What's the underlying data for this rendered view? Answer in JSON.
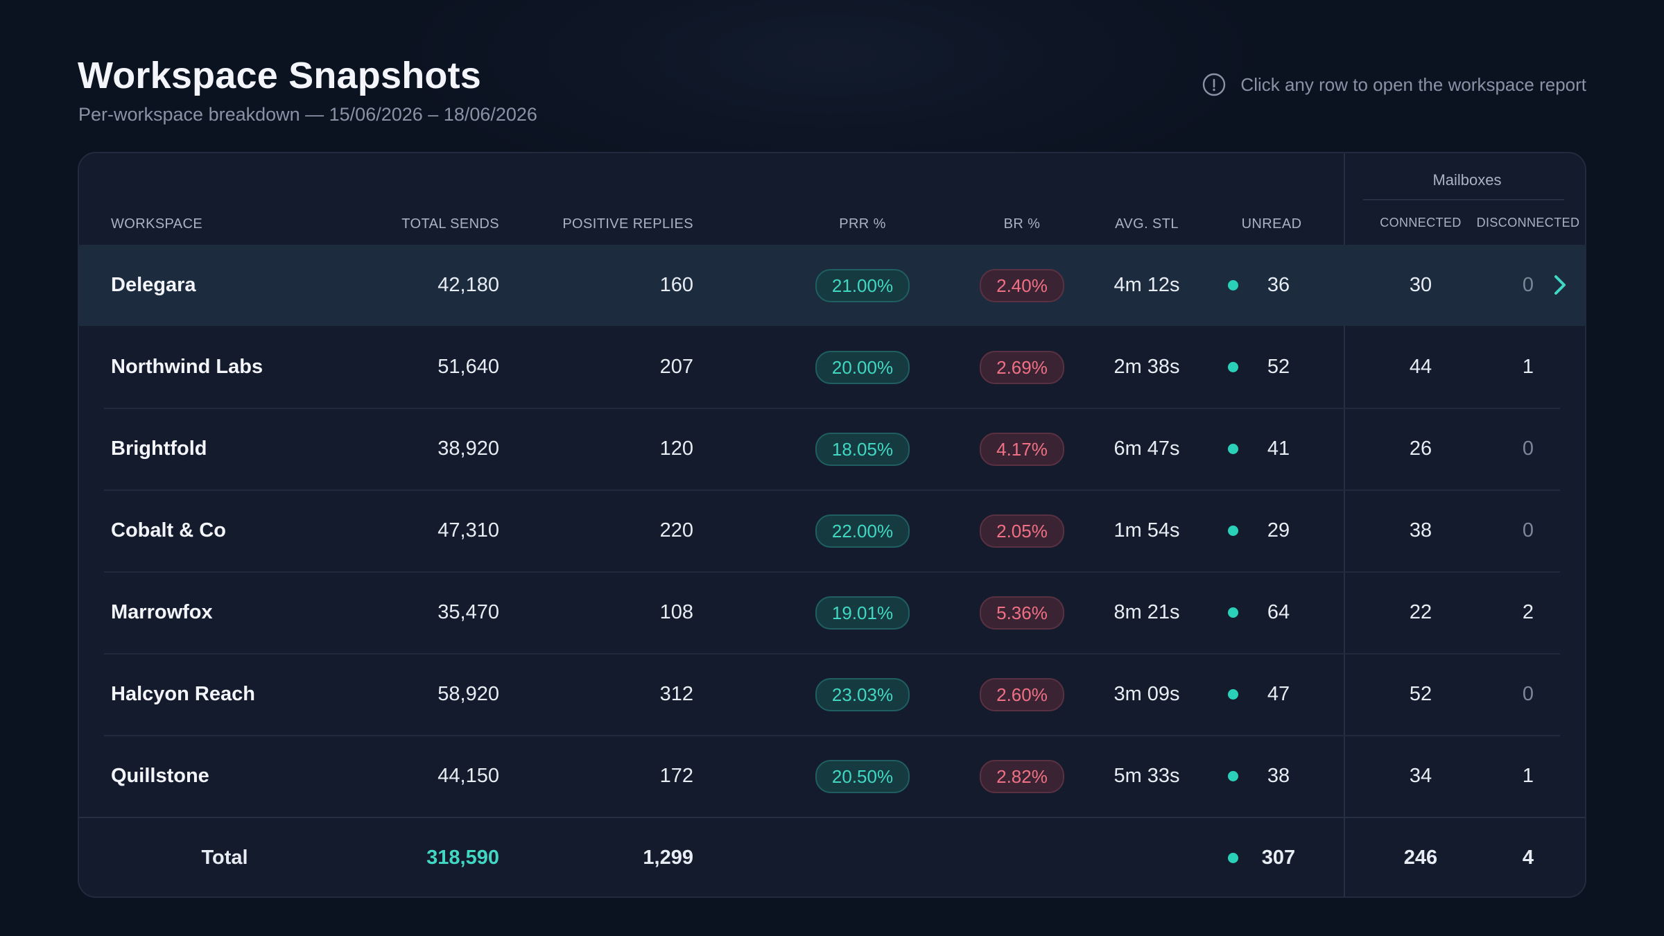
{
  "header": {
    "title": "Workspace Snapshots",
    "subtitle": "Per-workspace breakdown — 15/06/2026 – 18/06/2026",
    "hint": "Click any row to open the workspace report"
  },
  "table": {
    "group_header": "Mailboxes",
    "columns": {
      "workspace": "WORKSPACE",
      "total_sends": "TOTAL SENDS",
      "positive_replies": "POSITIVE REPLIES",
      "prr": "PRR %",
      "br": "BR %",
      "avg_stl": "AVG. STL",
      "unread": "UNREAD",
      "connected": "CONNECTED",
      "disconnected": "DISCONNECTED"
    },
    "rows": [
      {
        "workspace": "Delegara",
        "total_sends": "42,180",
        "positive_replies": "160",
        "prr": "21.00%",
        "br": "2.40%",
        "avg_stl": "4m 12s",
        "unread": "36",
        "connected": "30",
        "disconnected": "0"
      },
      {
        "workspace": "Northwind Labs",
        "total_sends": "51,640",
        "positive_replies": "207",
        "prr": "20.00%",
        "br": "2.69%",
        "avg_stl": "2m 38s",
        "unread": "52",
        "connected": "44",
        "disconnected": "1"
      },
      {
        "workspace": "Brightfold",
        "total_sends": "38,920",
        "positive_replies": "120",
        "prr": "18.05%",
        "br": "4.17%",
        "avg_stl": "6m 47s",
        "unread": "41",
        "connected": "26",
        "disconnected": "0"
      },
      {
        "workspace": "Cobalt & Co",
        "total_sends": "47,310",
        "positive_replies": "220",
        "prr": "22.00%",
        "br": "2.05%",
        "avg_stl": "1m 54s",
        "unread": "29",
        "connected": "38",
        "disconnected": "0"
      },
      {
        "workspace": "Marrowfox",
        "total_sends": "35,470",
        "positive_replies": "108",
        "prr": "19.01%",
        "br": "5.36%",
        "avg_stl": "8m 21s",
        "unread": "64",
        "connected": "22",
        "disconnected": "2"
      },
      {
        "workspace": "Halcyon Reach",
        "total_sends": "58,920",
        "positive_replies": "312",
        "prr": "23.03%",
        "br": "2.60%",
        "avg_stl": "3m 09s",
        "unread": "47",
        "connected": "52",
        "disconnected": "0"
      },
      {
        "workspace": "Quillstone",
        "total_sends": "44,150",
        "positive_replies": "172",
        "prr": "20.50%",
        "br": "2.82%",
        "avg_stl": "5m 33s",
        "unread": "38",
        "connected": "34",
        "disconnected": "1"
      }
    ],
    "total": {
      "label": "Total",
      "total_sends": "318,590",
      "positive_replies": "1,299",
      "unread": "307",
      "connected": "246",
      "disconnected": "4"
    }
  },
  "colors": {
    "accent": "#41d7c2",
    "danger": "#f07185",
    "background": "#0b1220",
    "card": "#141b2c",
    "row_highlight": "#1c2b3e"
  },
  "icons": {
    "hint": "info-icon",
    "row_action": "chevron-right-icon",
    "unread_status": "status-dot-icon"
  }
}
